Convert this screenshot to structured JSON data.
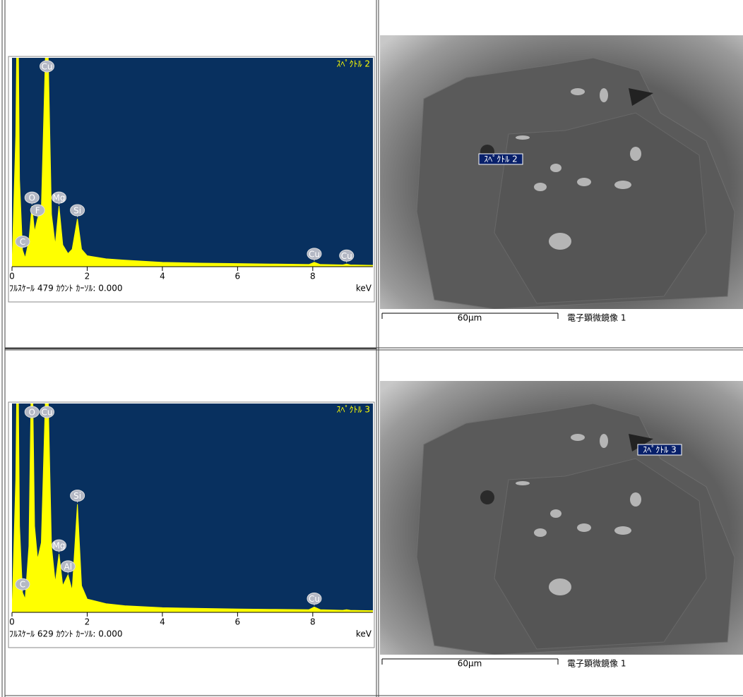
{
  "chart_data": [
    {
      "type": "area",
      "title": "ｽﾍﾟｸﾄﾙ 2",
      "xlabel": "keV",
      "footer": "ﾌﾙｽｹｰﾙ 479 ｶｳﾝﾄ ｶｰｿﾙ: 0.000",
      "color": "#ffff00",
      "background": "#08305f",
      "xlim": [
        0,
        9.6
      ],
      "xticks": [
        0,
        2,
        4,
        6,
        8
      ],
      "ylim": [
        0,
        479
      ],
      "x": [
        0,
        0.1,
        0.15,
        0.2,
        0.28,
        0.35,
        0.45,
        0.53,
        0.6,
        0.68,
        0.78,
        0.93,
        1.05,
        1.15,
        1.25,
        1.35,
        1.49,
        1.6,
        1.74,
        1.85,
        2.0,
        2.5,
        3,
        4,
        5,
        6,
        7,
        7.9,
        8.04,
        8.2,
        8.8,
        8.9,
        9.0,
        9.6
      ],
      "values": [
        0,
        300,
        700,
        200,
        38,
        20,
        60,
        139,
        80,
        110,
        130,
        620,
        120,
        50,
        139,
        50,
        30,
        40,
        110,
        40,
        25,
        18,
        15,
        10,
        8,
        7,
        6,
        5,
        10,
        5,
        4,
        6,
        4,
        3
      ],
      "peaks": [
        {
          "label": "C",
          "x": 0.28
        },
        {
          "label": "O",
          "x": 0.53
        },
        {
          "label": "F",
          "x": 0.68
        },
        {
          "label": "Cu",
          "x": 0.93
        },
        {
          "label": "Mg",
          "x": 1.25
        },
        {
          "label": "Si",
          "x": 1.74
        },
        {
          "label": "Cu",
          "x": 8.04
        },
        {
          "label": "Cu",
          "x": 8.9
        }
      ]
    },
    {
      "type": "area",
      "title": "ｽﾍﾟｸﾄﾙ 3",
      "xlabel": "keV",
      "footer": "ﾌﾙｽｹｰﾙ 629 ｶｳﾝﾄ ｶｰｿﾙ: 0.000",
      "color": "#ffff00",
      "background": "#08305f",
      "xlim": [
        0,
        9.6
      ],
      "xticks": [
        0,
        2,
        4,
        6,
        8
      ],
      "ylim": [
        0,
        629
      ],
      "x": [
        0,
        0.1,
        0.15,
        0.2,
        0.28,
        0.35,
        0.45,
        0.53,
        0.6,
        0.68,
        0.78,
        0.93,
        1.05,
        1.15,
        1.25,
        1.35,
        1.49,
        1.6,
        1.74,
        1.85,
        2.0,
        2.5,
        3,
        4,
        5,
        6,
        7,
        7.9,
        8.04,
        8.2,
        8.8,
        8.9,
        9.0,
        9.6
      ],
      "values": [
        0,
        400,
        900,
        260,
        59,
        40,
        200,
        840,
        260,
        160,
        210,
        810,
        200,
        90,
        176,
        80,
        113,
        66,
        326,
        80,
        40,
        26,
        20,
        14,
        12,
        10,
        9,
        8,
        16,
        8,
        6,
        8,
        6,
        5
      ],
      "peaks": [
        {
          "label": "C",
          "x": 0.28
        },
        {
          "label": "O",
          "x": 0.53
        },
        {
          "label": "Cu",
          "x": 0.93
        },
        {
          "label": "Mg",
          "x": 1.25
        },
        {
          "label": "Al",
          "x": 1.49
        },
        {
          "label": "Si",
          "x": 1.74
        },
        {
          "label": "Cu",
          "x": 8.04
        }
      ]
    }
  ],
  "images": [
    {
      "marker": "ｽﾍﾟｸﾄﾙ 2",
      "scale": "60μm",
      "caption": "電子顕微鏡像 1"
    },
    {
      "marker": "ｽﾍﾟｸﾄﾙ 3",
      "scale": "60μm",
      "caption": "電子顕微鏡像 1"
    }
  ]
}
